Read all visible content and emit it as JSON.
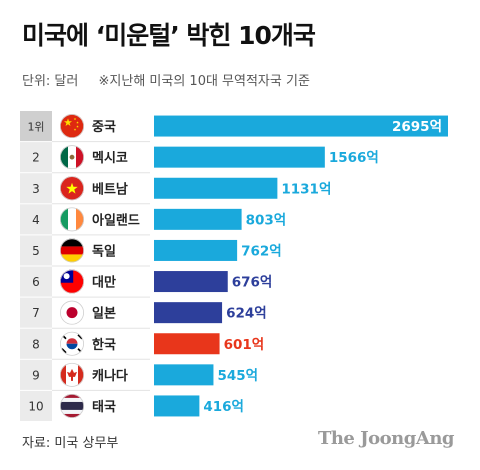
{
  "header": {
    "title": "미국에 ‘미운털’ 박힌 10개국",
    "unit": "단위: 달러",
    "note": "※지난해 미국의 10대 무역적자국 기준"
  },
  "footer": {
    "source": "자료: 미국 상무부",
    "brand": "The JoongAng"
  },
  "colors": {
    "top": "#1aa9dc",
    "mid": "#2d3f9b",
    "highlight": "#e8361b",
    "rank_bg_first": "#cfcfcf",
    "rank_bg": "#ebebeb"
  },
  "chart_data": {
    "type": "bar",
    "orientation": "horizontal",
    "categories": [
      "중국",
      "멕시코",
      "베트남",
      "아일랜드",
      "독일",
      "대만",
      "일본",
      "한국",
      "캐나다",
      "태국"
    ],
    "ranks": [
      "1위",
      "2",
      "3",
      "4",
      "5",
      "6",
      "7",
      "8",
      "9",
      "10"
    ],
    "values": [
      2695,
      1566,
      1131,
      803,
      762,
      676,
      624,
      601,
      545,
      416
    ],
    "value_labels": [
      "2695억",
      "1566억",
      "1131억",
      "803억",
      "762억",
      "676억",
      "624억",
      "601억",
      "545억",
      "416억"
    ],
    "flag_icons": [
      "china-flag-icon",
      "mexico-flag-icon",
      "vietnam-flag-icon",
      "ireland-flag-icon",
      "germany-flag-icon",
      "taiwan-flag-icon",
      "japan-flag-icon",
      "korea-flag-icon",
      "canada-flag-icon",
      "thailand-flag-icon"
    ],
    "bar_colors": [
      "#1aa9dc",
      "#1aa9dc",
      "#1aa9dc",
      "#1aa9dc",
      "#1aa9dc",
      "#2d3f9b",
      "#2d3f9b",
      "#e8361b",
      "#1aa9dc",
      "#1aa9dc"
    ],
    "xlim": [
      0,
      2695
    ]
  }
}
